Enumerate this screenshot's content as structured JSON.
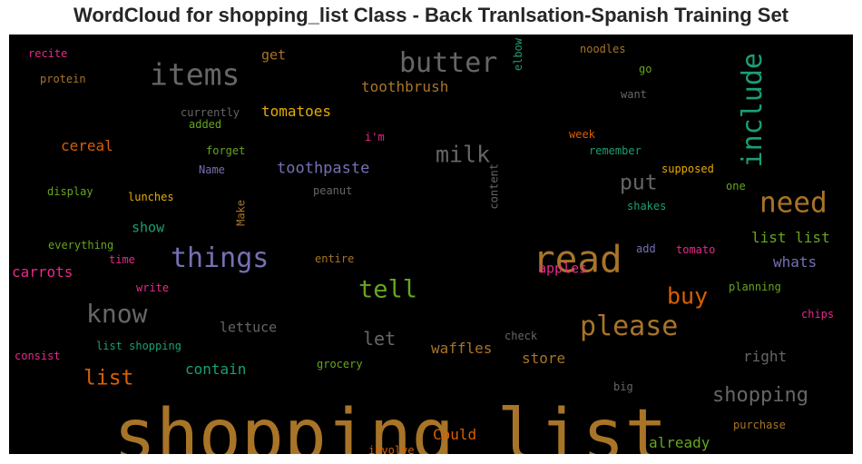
{
  "title": "WordCloud for shopping_list Class - Back Tranlsation-Spanish Training Set",
  "chart_data": {
    "type": "wordcloud",
    "background": "#000000",
    "words": [
      {
        "text": "shopping list",
        "weight": 1.0,
        "color": "#a87428",
        "vertical": false
      },
      {
        "text": "read",
        "weight": 0.52,
        "color": "#a87428",
        "vertical": false
      },
      {
        "text": "items",
        "weight": 0.42,
        "color": "#666666",
        "vertical": false
      },
      {
        "text": "butter",
        "weight": 0.38,
        "color": "#666666",
        "vertical": false
      },
      {
        "text": "include",
        "weight": 0.38,
        "color": "#1b9e77",
        "vertical": true
      },
      {
        "text": "need",
        "weight": 0.4,
        "color": "#a87428",
        "vertical": false
      },
      {
        "text": "things",
        "weight": 0.38,
        "color": "#7570b3",
        "vertical": false
      },
      {
        "text": "please",
        "weight": 0.38,
        "color": "#a87428",
        "vertical": false
      },
      {
        "text": "know",
        "weight": 0.36,
        "color": "#666666",
        "vertical": false
      },
      {
        "text": "tell",
        "weight": 0.35,
        "color": "#66a61e",
        "vertical": false
      },
      {
        "text": "milk",
        "weight": 0.32,
        "color": "#666666",
        "vertical": false
      },
      {
        "text": "buy",
        "weight": 0.32,
        "color": "#d95f02",
        "vertical": false
      },
      {
        "text": "put",
        "weight": 0.3,
        "color": "#666666",
        "vertical": false
      },
      {
        "text": "list",
        "weight": 0.3,
        "color": "#d95f02",
        "vertical": false
      },
      {
        "text": "shopping",
        "weight": 0.28,
        "color": "#666666",
        "vertical": false
      },
      {
        "text": "let",
        "weight": 0.26,
        "color": "#666666",
        "vertical": false
      },
      {
        "text": "toothpaste",
        "weight": 0.22,
        "color": "#7570b3",
        "vertical": false
      },
      {
        "text": "toothbrush",
        "weight": 0.2,
        "color": "#a87428",
        "vertical": false
      },
      {
        "text": "tomatoes",
        "weight": 0.2,
        "color": "#e6ab02",
        "vertical": false
      },
      {
        "text": "cereal",
        "weight": 0.2,
        "color": "#d95f02",
        "vertical": false
      },
      {
        "text": "carrots",
        "weight": 0.2,
        "color": "#e7298a",
        "vertical": false
      },
      {
        "text": "waffles",
        "weight": 0.2,
        "color": "#a87428",
        "vertical": false
      },
      {
        "text": "contain",
        "weight": 0.2,
        "color": "#1b9e77",
        "vertical": false
      },
      {
        "text": "whats",
        "weight": 0.2,
        "color": "#7570b3",
        "vertical": false
      },
      {
        "text": "list list",
        "weight": 0.2,
        "color": "#66a61e",
        "vertical": false
      },
      {
        "text": "right",
        "weight": 0.2,
        "color": "#666666",
        "vertical": false
      },
      {
        "text": "store",
        "weight": 0.2,
        "color": "#a87428",
        "vertical": false
      },
      {
        "text": "Could",
        "weight": 0.2,
        "color": "#d95f02",
        "vertical": false
      },
      {
        "text": "already",
        "weight": 0.2,
        "color": "#66a61e",
        "vertical": false
      },
      {
        "text": "lettuce",
        "weight": 0.19,
        "color": "#666666",
        "vertical": false
      },
      {
        "text": "apples",
        "weight": 0.19,
        "color": "#e7298a",
        "vertical": false
      },
      {
        "text": "show",
        "weight": 0.19,
        "color": "#1b9e77",
        "vertical": false
      },
      {
        "text": "get",
        "weight": 0.19,
        "color": "#a87428",
        "vertical": false
      },
      {
        "text": "currently",
        "weight": 0.16,
        "color": "#666666",
        "vertical": false
      },
      {
        "text": "added",
        "weight": 0.15,
        "color": "#66a61e",
        "vertical": false
      },
      {
        "text": "forget",
        "weight": 0.15,
        "color": "#66a61e",
        "vertical": false
      },
      {
        "text": "Name",
        "weight": 0.14,
        "color": "#7570b3",
        "vertical": false
      },
      {
        "text": "display",
        "weight": 0.15,
        "color": "#66a61e",
        "vertical": false
      },
      {
        "text": "lunches",
        "weight": 0.15,
        "color": "#e6ab02",
        "vertical": false
      },
      {
        "text": "peanut",
        "weight": 0.15,
        "color": "#666666",
        "vertical": false
      },
      {
        "text": "everything",
        "weight": 0.15,
        "color": "#66a61e",
        "vertical": false
      },
      {
        "text": "time",
        "weight": 0.15,
        "color": "#e7298a",
        "vertical": false
      },
      {
        "text": "entire",
        "weight": 0.15,
        "color": "#a87428",
        "vertical": false
      },
      {
        "text": "write",
        "weight": 0.15,
        "color": "#e7298a",
        "vertical": false
      },
      {
        "text": "list shopping",
        "weight": 0.15,
        "color": "#1b9e77",
        "vertical": false
      },
      {
        "text": "consist",
        "weight": 0.15,
        "color": "#e7298a",
        "vertical": false
      },
      {
        "text": "grocery",
        "weight": 0.15,
        "color": "#66a61e",
        "vertical": false
      },
      {
        "text": "check",
        "weight": 0.15,
        "color": "#666666",
        "vertical": false
      },
      {
        "text": "involve",
        "weight": 0.15,
        "color": "#d95f02",
        "vertical": false
      },
      {
        "text": "recite",
        "weight": 0.15,
        "color": "#e7298a",
        "vertical": false
      },
      {
        "text": "protein",
        "weight": 0.15,
        "color": "#a87428",
        "vertical": false
      },
      {
        "text": "i'm",
        "weight": 0.15,
        "color": "#e7298a",
        "vertical": false
      },
      {
        "text": "noodles",
        "weight": 0.15,
        "color": "#a87428",
        "vertical": false
      },
      {
        "text": "go",
        "weight": 0.15,
        "color": "#66a61e",
        "vertical": false
      },
      {
        "text": "want",
        "weight": 0.15,
        "color": "#666666",
        "vertical": false
      },
      {
        "text": "week",
        "weight": 0.15,
        "color": "#d95f02",
        "vertical": false
      },
      {
        "text": "remember",
        "weight": 0.15,
        "color": "#1b9e77",
        "vertical": false
      },
      {
        "text": "supposed",
        "weight": 0.15,
        "color": "#e6ab02",
        "vertical": false
      },
      {
        "text": "one",
        "weight": 0.15,
        "color": "#66a61e",
        "vertical": false
      },
      {
        "text": "shakes",
        "weight": 0.15,
        "color": "#1b9e77",
        "vertical": false
      },
      {
        "text": "add",
        "weight": 0.14,
        "color": "#7570b3",
        "vertical": false
      },
      {
        "text": "tomato",
        "weight": 0.15,
        "color": "#e7298a",
        "vertical": false
      },
      {
        "text": "planning",
        "weight": 0.15,
        "color": "#66a61e",
        "vertical": false
      },
      {
        "text": "chips",
        "weight": 0.15,
        "color": "#e7298a",
        "vertical": false
      },
      {
        "text": "big",
        "weight": 0.15,
        "color": "#666666",
        "vertical": false
      },
      {
        "text": "purchase",
        "weight": 0.15,
        "color": "#a87428",
        "vertical": false
      },
      {
        "text": "elbow",
        "weight": 0.14,
        "color": "#1b9e77",
        "vertical": true
      },
      {
        "text": "content",
        "weight": 0.14,
        "color": "#666666",
        "vertical": true
      },
      {
        "text": "Make",
        "weight": 0.14,
        "color": "#a87428",
        "vertical": true
      }
    ]
  }
}
